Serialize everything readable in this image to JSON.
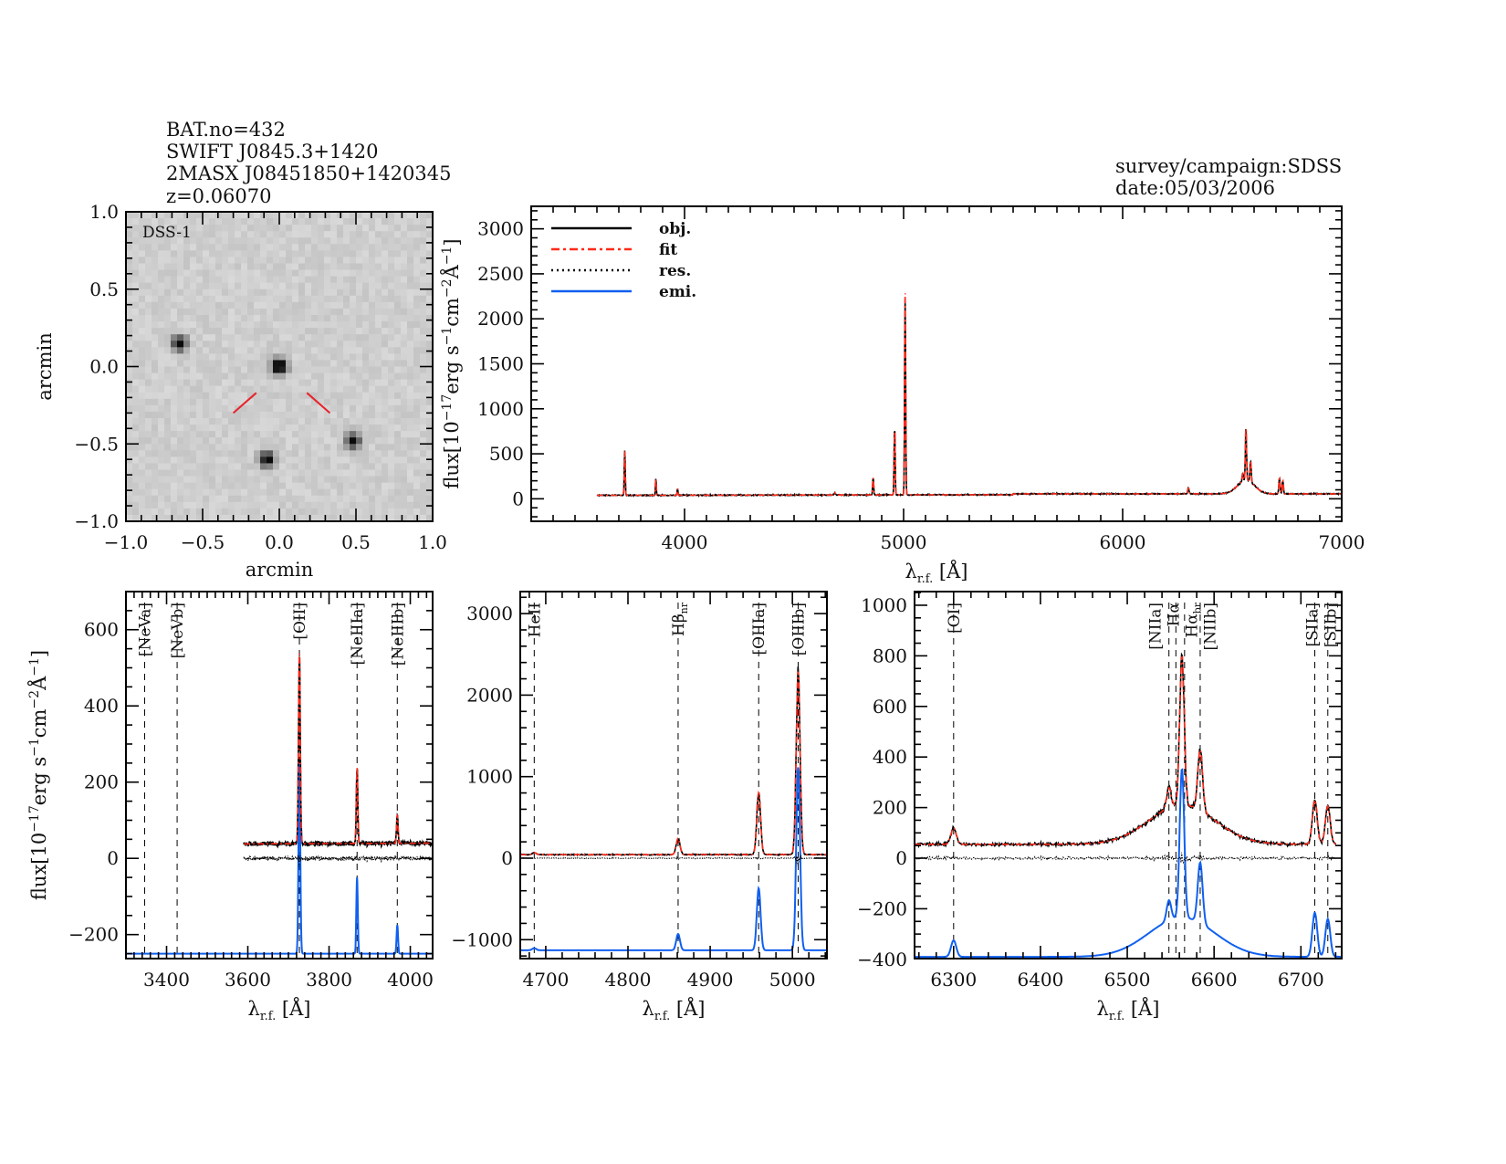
{
  "header": {
    "left_lines": [
      "BAT.no=432",
      "SWIFT J0845.3+1420",
      "2MASX J08451850+1420345",
      "z=0.06070"
    ],
    "right_lines": [
      "survey/campaign:SDSS",
      "date:05/03/2006"
    ]
  },
  "colors": {
    "obj": "#000000",
    "fit": "#ff2a1a",
    "res": "#000000",
    "emi": "#1060f0",
    "marker": "#e8222a"
  },
  "chart_data": [
    {
      "type": "image",
      "title": "DSS-1",
      "xlabel": "arcmin",
      "ylabel": "arcmin",
      "xlim": [
        -1.0,
        1.0
      ],
      "ylim": [
        -1.0,
        1.0
      ],
      "xticks": [
        "−1.0",
        "−0.5",
        "0.0",
        "0.5",
        "1.0"
      ],
      "yticks": [
        "−1.0",
        "−0.5",
        "0.0",
        "0.5",
        "1.0"
      ],
      "xtick_values": [
        -1.0,
        -0.5,
        0.0,
        0.5,
        1.0
      ],
      "ytick_values": [
        -1.0,
        -0.5,
        0.0,
        0.5,
        1.0
      ],
      "sources": [
        {
          "x": 0.0,
          "y": 0.0,
          "strength": 1.0
        },
        {
          "x": -0.65,
          "y": 0.15,
          "strength": 0.8
        },
        {
          "x": -0.08,
          "y": -0.6,
          "strength": 0.85
        },
        {
          "x": 0.48,
          "y": -0.48,
          "strength": 0.8
        }
      ]
    },
    {
      "type": "line",
      "name": "full",
      "xlabel": {
        "main": "λ",
        "sub": "r.f.",
        "rest": " [Å]"
      },
      "ylabel": {
        "a": "flux[10",
        "sup1": "−17",
        "b": "erg s",
        "sup2": "−1",
        "c": "cm",
        "sup3": "−2",
        "d": "Å",
        "sup4": "−1",
        "e": "]"
      },
      "xlim": [
        3300,
        7000
      ],
      "ylim": [
        -250,
        3250
      ],
      "xtick_values": [
        4000,
        5000,
        6000,
        7000
      ],
      "xticks": [
        "4000",
        "5000",
        "6000",
        "7000"
      ],
      "ytick_values": [
        0,
        500,
        1000,
        1500,
        2000,
        2500,
        3000
      ],
      "yticks": [
        "0",
        "500",
        "1000",
        "1500",
        "2000",
        "2500",
        "3000"
      ],
      "data_range": [
        3600,
        7000
      ],
      "legend": {
        "position": "top-left",
        "entries": [
          "obj.",
          "fit",
          "res.",
          "emi."
        ]
      }
    },
    {
      "type": "line",
      "name": "blue",
      "xlabel": {
        "main": "λ",
        "sub": "r.f.",
        "rest": " [Å]"
      },
      "ylabel": {
        "a": "flux[10",
        "sup1": "−17",
        "b": "erg s",
        "sup2": "−1",
        "c": "cm",
        "sup3": "−2",
        "d": "Å",
        "sup4": "−1",
        "e": "]"
      },
      "xlim": [
        3300,
        4055
      ],
      "ylim": [
        -263,
        700
      ],
      "xtick_values": [
        3400,
        3600,
        3800,
        4000
      ],
      "xticks": [
        "3400",
        "3600",
        "3800",
        "4000"
      ],
      "ytick_values": [
        -200,
        0,
        200,
        400,
        600
      ],
      "yticks": [
        "−200",
        "0",
        "200",
        "400",
        "600"
      ],
      "data_range": [
        3590,
        4055
      ],
      "emi_offset": -250,
      "markers": [
        {
          "label": "[NeVa]",
          "wave": 3346,
          "color": "red"
        },
        {
          "label": "[NeVb]",
          "wave": 3426,
          "color": "red"
        },
        {
          "label": "[OII]",
          "wave": 3727
        },
        {
          "label": "[NeIIIa]",
          "wave": 3869
        },
        {
          "label": "[NeIIIb]",
          "wave": 3968
        }
      ]
    },
    {
      "type": "line",
      "name": "hbeta",
      "xlabel": {
        "main": "λ",
        "sub": "r.f.",
        "rest": " [Å]"
      },
      "xlim": [
        4669,
        5042
      ],
      "ylim": [
        -1232,
        3270
      ],
      "xtick_values": [
        4700,
        4800,
        4900,
        5000
      ],
      "xticks": [
        "4700",
        "4800",
        "4900",
        "5000"
      ],
      "ytick_values": [
        -1000,
        0,
        1000,
        2000,
        3000
      ],
      "yticks": [
        "−1000",
        "0",
        "1000",
        "2000",
        "3000"
      ],
      "data_range": [
        4669,
        5042
      ],
      "emi_offset": -1130,
      "markers": [
        {
          "label": "HeII",
          "wave": 4686
        },
        {
          "label": "Hβ",
          "sub": "nr",
          "wave": 4861
        },
        {
          "label": "[OIIIa]",
          "wave": 4959
        },
        {
          "label": "[OIIIb]",
          "wave": 5007
        }
      ]
    },
    {
      "type": "line",
      "name": "halpha",
      "xlabel": {
        "main": "λ",
        "sub": "r.f.",
        "rest": " [Å]"
      },
      "xlim": [
        6255,
        6747
      ],
      "ylim": [
        -397,
        1054
      ],
      "xtick_values": [
        6300,
        6400,
        6500,
        6600,
        6700
      ],
      "xticks": [
        "6300",
        "6400",
        "6500",
        "6600",
        "6700"
      ],
      "ytick_values": [
        -400,
        -200,
        0,
        200,
        400,
        600,
        800,
        1000
      ],
      "yticks": [
        "−400",
        "−200",
        "0",
        "200",
        "400",
        "600",
        "800",
        "1000"
      ],
      "data_range": [
        6255,
        6740
      ],
      "emi_offset": -390,
      "markers": [
        {
          "label": "[OI]",
          "wave": 6300
        },
        {
          "label": "[NIIa]",
          "wave": 6548
        },
        {
          "label": "Hα",
          "wave": 6556
        },
        {
          "label": "Hα",
          "sub": "br",
          "wave": 6566
        },
        {
          "label": "[NIIb]",
          "wave": 6584
        },
        {
          "label": "[SIIa]",
          "wave": 6716
        },
        {
          "label": "[SIIb]",
          "wave": 6731
        }
      ]
    }
  ],
  "emission_model": {
    "continuum_blue": 38,
    "continuum_red": 55,
    "lines": [
      {
        "name": "[OII]",
        "wave": 3727,
        "amp": 500,
        "sigma": 2.2
      },
      {
        "name": "[NeIIIa]",
        "wave": 3869,
        "amp": 200,
        "sigma": 1.8
      },
      {
        "name": "[NeIIIb]",
        "wave": 3968,
        "amp": 75,
        "sigma": 1.8
      },
      {
        "name": "HeII",
        "wave": 4686,
        "amp": 25,
        "sigma": 2.5
      },
      {
        "name": "Hbeta",
        "wave": 4861,
        "amp": 200,
        "sigma": 2.3
      },
      {
        "name": "[OIIIa]",
        "wave": 4959,
        "amp": 760,
        "sigma": 2.3
      },
      {
        "name": "[OIIIb]",
        "wave": 5007,
        "amp": 2250,
        "sigma": 2.3
      },
      {
        "name": "[OI]",
        "wave": 6300,
        "amp": 65,
        "sigma": 3
      },
      {
        "name": "[NIIa]",
        "wave": 6548,
        "amp": 80,
        "sigma": 2.6
      },
      {
        "name": "Halpha",
        "wave": 6563,
        "amp": 590,
        "sigma": 2.6
      },
      {
        "name": "Halpha_br",
        "wave": 6563,
        "amp": 155,
        "sigma": 38
      },
      {
        "name": "[NIIb]",
        "wave": 6584,
        "amp": 240,
        "sigma": 2.8
      },
      {
        "name": "[SIIa]",
        "wave": 6716,
        "amp": 175,
        "sigma": 2.8
      },
      {
        "name": "[SIIb]",
        "wave": 6731,
        "amp": 150,
        "sigma": 2.8
      }
    ]
  }
}
